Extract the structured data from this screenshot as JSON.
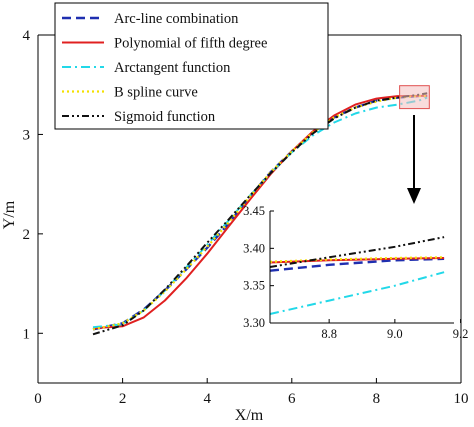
{
  "chart_data": {
    "type": "line",
    "xlabel": "X/m",
    "ylabel": "Y/m",
    "xlim": [
      0,
      10
    ],
    "ylim": [
      0.5,
      4
    ],
    "xticks": [
      0,
      2,
      4,
      6,
      8,
      10
    ],
    "yticks": [
      1,
      2,
      3,
      4
    ],
    "grid": false,
    "legend_position": "top-left",
    "series": [
      {
        "name": "Arc-line combination",
        "color": "#1f2fb0",
        "dash": "dashed",
        "x": [
          1.3,
          2.0,
          2.5,
          3.0,
          3.5,
          4.0,
          4.5,
          5.0,
          5.5,
          6.0,
          6.5,
          7.0,
          7.5,
          8.0,
          8.5,
          9.0,
          9.2
        ],
        "y": [
          1.04,
          1.1,
          1.24,
          1.43,
          1.64,
          1.86,
          2.1,
          2.37,
          2.62,
          2.83,
          3.02,
          3.17,
          3.27,
          3.34,
          3.37,
          3.385,
          3.386
        ]
      },
      {
        "name": "Polynomial of fifth degree",
        "color": "#e02020",
        "dash": "solid",
        "x": [
          1.3,
          2.0,
          2.5,
          3.0,
          3.5,
          4.0,
          4.5,
          5.0,
          5.5,
          6.0,
          6.5,
          7.0,
          7.5,
          8.0,
          8.5,
          9.0,
          9.2
        ],
        "y": [
          1.05,
          1.07,
          1.16,
          1.33,
          1.55,
          1.8,
          2.07,
          2.34,
          2.6,
          2.83,
          3.03,
          3.19,
          3.3,
          3.36,
          3.385,
          3.387,
          3.387
        ]
      },
      {
        "name": "Arctangent function",
        "color": "#22d8e8",
        "dash": "dashdot",
        "x": [
          1.3,
          2.0,
          2.5,
          3.0,
          3.5,
          4.0,
          4.5,
          5.0,
          5.5,
          6.0,
          6.5,
          7.0,
          7.5,
          8.0,
          8.5,
          9.0,
          9.2
        ],
        "y": [
          1.06,
          1.09,
          1.23,
          1.43,
          1.66,
          1.89,
          2.13,
          2.38,
          2.61,
          2.82,
          2.99,
          3.12,
          3.21,
          3.27,
          3.3,
          3.34,
          3.37
        ]
      },
      {
        "name": "B spline curve",
        "color": "#f4e000",
        "dash": "dotted",
        "x": [
          1.3,
          2.0,
          2.5,
          3.0,
          3.5,
          4.0,
          4.5,
          5.0,
          5.5,
          6.0,
          6.5,
          7.0,
          7.5,
          8.0,
          8.5,
          9.0,
          9.2
        ],
        "y": [
          1.04,
          1.1,
          1.23,
          1.42,
          1.64,
          1.87,
          2.11,
          2.37,
          2.62,
          2.83,
          3.02,
          3.17,
          3.27,
          3.33,
          3.37,
          3.385,
          3.388
        ]
      },
      {
        "name": "Sigmoid function",
        "color": "#111111",
        "dash": "dashdotdot",
        "x": [
          1.3,
          2.0,
          2.5,
          3.0,
          3.5,
          4.0,
          4.5,
          5.0,
          5.5,
          6.0,
          6.5,
          7.0,
          7.5,
          8.0,
          8.5,
          9.0,
          9.2
        ],
        "y": [
          0.99,
          1.08,
          1.23,
          1.44,
          1.67,
          1.91,
          2.14,
          2.38,
          2.61,
          2.82,
          3.01,
          3.16,
          3.27,
          3.34,
          3.37,
          3.4,
          3.415
        ]
      }
    ],
    "inset": {
      "xlim": [
        8.62,
        9.18
      ],
      "ylim": [
        3.3,
        3.45
      ],
      "xticks": [
        8.8,
        9.0,
        9.2
      ],
      "yticks": [
        3.3,
        3.35,
        3.4,
        3.45
      ],
      "xtick_labels": [
        "8.8",
        "9.0",
        "9.2"
      ],
      "ytick_labels": [
        "3.30",
        "3.35",
        "3.40",
        "3.45"
      ],
      "highlight_region": {
        "x": [
          8.62,
          9.18
        ],
        "y": [
          3.3,
          3.45
        ]
      },
      "series": [
        {
          "name": "Arc-line combination",
          "x": [
            8.62,
            8.8,
            9.0,
            9.15
          ],
          "y": [
            3.37,
            3.378,
            3.384,
            3.386
          ]
        },
        {
          "name": "Polynomial of fifth degree",
          "x": [
            8.62,
            8.8,
            9.0,
            9.15
          ],
          "y": [
            3.381,
            3.384,
            3.386,
            3.387
          ]
        },
        {
          "name": "Arctangent function",
          "x": [
            8.62,
            8.8,
            9.0,
            9.15
          ],
          "y": [
            3.312,
            3.33,
            3.35,
            3.368
          ]
        },
        {
          "name": "B spline curve",
          "x": [
            8.62,
            8.8,
            9.0,
            9.15
          ],
          "y": [
            3.382,
            3.385,
            3.387,
            3.388
          ]
        },
        {
          "name": "Sigmoid function",
          "x": [
            8.62,
            8.8,
            9.0,
            9.15
          ],
          "y": [
            3.375,
            3.388,
            3.402,
            3.415
          ]
        }
      ]
    }
  }
}
